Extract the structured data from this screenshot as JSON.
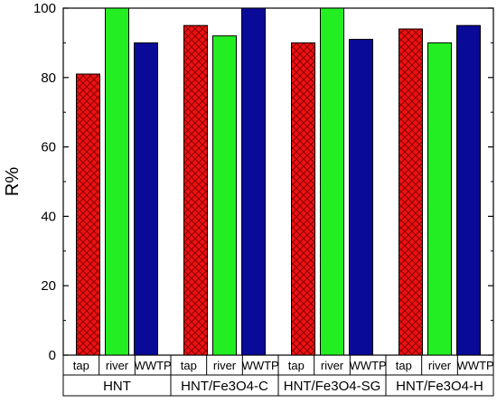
{
  "chart_data": {
    "type": "bar",
    "ylabel": "R%",
    "ylim": [
      0,
      100
    ],
    "yticks": [
      0,
      20,
      40,
      60,
      80,
      100
    ],
    "grid": false,
    "legend": "none",
    "groups": [
      {
        "label": "HNT",
        "bars": [
          {
            "category": "tap",
            "value": 81
          },
          {
            "category": "river",
            "value": 100
          },
          {
            "category": "WWTP",
            "value": 90
          }
        ]
      },
      {
        "label": "HNT/Fe3O4-C",
        "bars": [
          {
            "category": "tap",
            "value": 95
          },
          {
            "category": "river",
            "value": 92
          },
          {
            "category": "WWTP",
            "value": 100
          }
        ]
      },
      {
        "label": "HNT/Fe3O4-SG",
        "bars": [
          {
            "category": "tap",
            "value": 90
          },
          {
            "category": "river",
            "value": 100
          },
          {
            "category": "WWTP",
            "value": 91
          }
        ]
      },
      {
        "label": "HNT/Fe3O4-H",
        "bars": [
          {
            "category": "tap",
            "value": 94
          },
          {
            "category": "river",
            "value": 90
          },
          {
            "category": "WWTP",
            "value": 95
          }
        ]
      }
    ],
    "colors": {
      "tap": "#ee1111",
      "river": "#22ee22",
      "WWTP": "#0a0a99"
    },
    "tap_pattern": "crosshatch"
  }
}
